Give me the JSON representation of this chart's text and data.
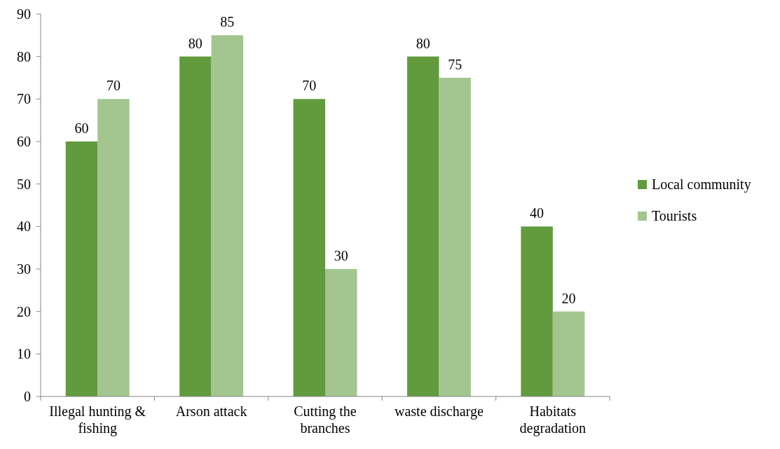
{
  "chart_data": {
    "type": "bar",
    "categories": [
      "Illegal hunting & fishing",
      "Arson attack",
      "Cutting the branches",
      "waste discharge",
      "Habitats degradation"
    ],
    "series": [
      {
        "name": "Local community",
        "color": "#629a3e",
        "values": [
          60,
          80,
          70,
          80,
          40
        ]
      },
      {
        "name": "Tourists",
        "color": "#a3c590",
        "values": [
          70,
          85,
          30,
          75,
          20
        ]
      }
    ],
    "ylim": [
      0,
      90
    ],
    "yticks": [
      0,
      10,
      20,
      30,
      40,
      50,
      60,
      70,
      80,
      90
    ],
    "grid": false,
    "legend": "right",
    "data_labels": true
  }
}
